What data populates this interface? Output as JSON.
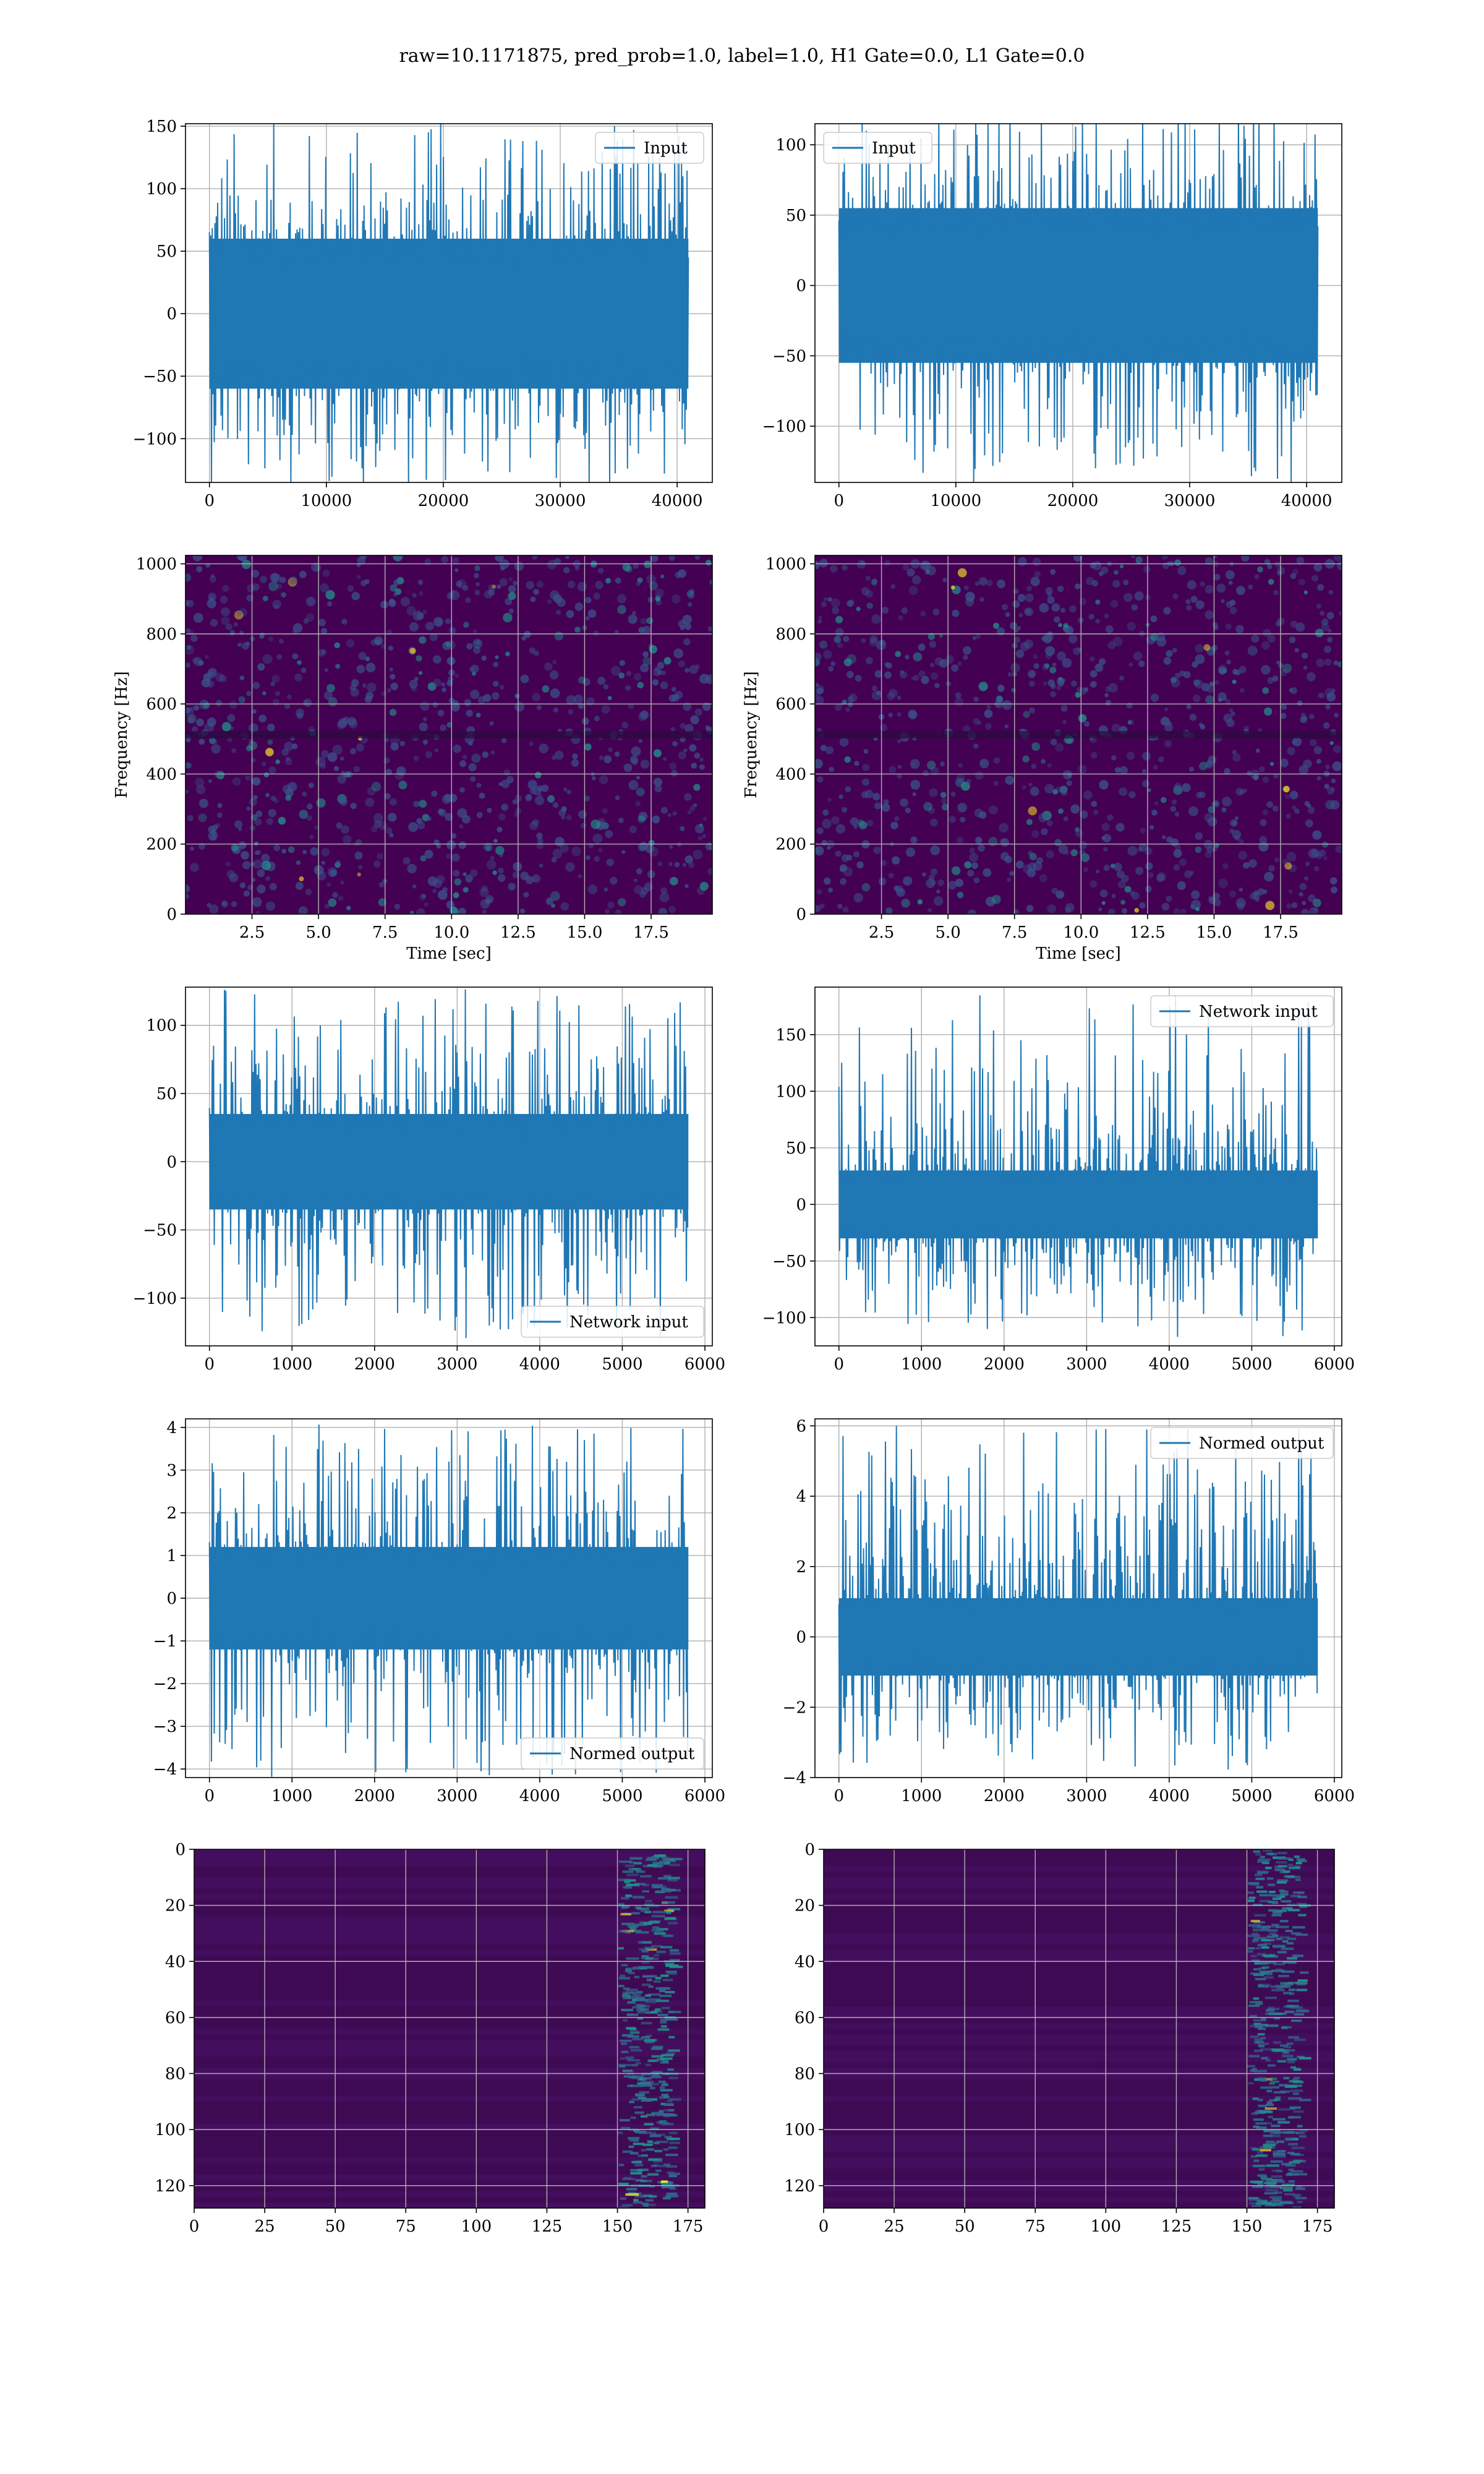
{
  "figure": {
    "suptitle": "raw=10.1171875, pred_prob=1.0, label=1.0, H1 Gate=0.0, L1 Gate=0.0"
  },
  "colors": {
    "line": "#1f77b4",
    "grid": "#b0b0b0",
    "viridis_low": "#440154",
    "viridis_mid": "#21918c",
    "viridis_high": "#fde725"
  },
  "chart_data": [
    {
      "id": "h1-input",
      "type": "line",
      "grid": true,
      "legend": "upper right",
      "series": [
        {
          "name": "Input",
          "n_points": 40960,
          "center": 0,
          "band": [
            -60,
            60
          ],
          "extremes": [
            -125,
            140
          ]
        }
      ],
      "xlim": [
        -2048,
        43008
      ],
      "ylim": [
        -135,
        152
      ],
      "xticks": [
        0,
        10000,
        20000,
        30000,
        40000
      ],
      "yticks": [
        -100,
        -50,
        0,
        50,
        100,
        150
      ],
      "xlabel": "",
      "ylabel": ""
    },
    {
      "id": "l1-input",
      "type": "line",
      "grid": true,
      "legend": "upper left",
      "series": [
        {
          "name": "Input",
          "n_points": 40960,
          "center": 0,
          "band": [
            -55,
            55
          ],
          "extremes": [
            -128,
            125
          ]
        }
      ],
      "xlim": [
        -2048,
        43008
      ],
      "ylim": [
        -140,
        115
      ],
      "xticks": [
        0,
        10000,
        20000,
        30000,
        40000
      ],
      "yticks": [
        -100,
        -50,
        0,
        50,
        100
      ],
      "xlabel": "",
      "ylabel": ""
    },
    {
      "id": "h1-spectrogram",
      "type": "heatmap",
      "grid": true,
      "xlim": [
        0,
        19.8
      ],
      "ylim": [
        0,
        1024
      ],
      "xticks": [
        2.5,
        5.0,
        7.5,
        10.0,
        12.5,
        15.0,
        17.5
      ],
      "yticks": [
        0,
        200,
        400,
        600,
        800,
        1000
      ],
      "xlabel": "Time [sec]",
      "ylabel": "Frequency [Hz]"
    },
    {
      "id": "l1-spectrogram",
      "type": "heatmap",
      "grid": true,
      "xlim": [
        0,
        19.8
      ],
      "ylim": [
        0,
        1024
      ],
      "xticks": [
        2.5,
        5.0,
        7.5,
        10.0,
        12.5,
        15.0,
        17.5
      ],
      "yticks": [
        0,
        200,
        400,
        600,
        800,
        1000
      ],
      "xlabel": "Time [sec]",
      "ylabel": "Frequency [Hz]"
    },
    {
      "id": "h1-network-input",
      "type": "line",
      "grid": true,
      "legend": "lower right",
      "series": [
        {
          "name": "Network input",
          "n_points": 5800,
          "center": 0,
          "band": [
            -35,
            35
          ],
          "extremes": [
            -125,
            118
          ]
        }
      ],
      "xlim": [
        -290,
        6090
      ],
      "ylim": [
        -135,
        128
      ],
      "xticks": [
        0,
        1000,
        2000,
        3000,
        4000,
        5000,
        6000
      ],
      "yticks": [
        -100,
        -50,
        0,
        50,
        100
      ],
      "xlabel": "",
      "ylabel": ""
    },
    {
      "id": "l1-network-input",
      "type": "line",
      "grid": true,
      "legend": "upper right",
      "series": [
        {
          "name": "Network input",
          "n_points": 5800,
          "center": 0,
          "band": [
            -30,
            30
          ],
          "extremes": [
            -112,
            180
          ]
        }
      ],
      "xlim": [
        -290,
        6090
      ],
      "ylim": [
        -125,
        192
      ],
      "xticks": [
        0,
        1000,
        2000,
        3000,
        4000,
        5000,
        6000
      ],
      "yticks": [
        -100,
        -50,
        0,
        50,
        100,
        150
      ],
      "xlabel": "",
      "ylabel": ""
    },
    {
      "id": "h1-normed-output",
      "type": "line",
      "grid": true,
      "legend": "lower right",
      "series": [
        {
          "name": "Normed output",
          "n_points": 5800,
          "center": 0,
          "band": [
            -1.2,
            1.2
          ],
          "extremes": [
            -3.9,
            3.8
          ]
        }
      ],
      "xlim": [
        -290,
        6090
      ],
      "ylim": [
        -4.2,
        4.2
      ],
      "xticks": [
        0,
        1000,
        2000,
        3000,
        4000,
        5000,
        6000
      ],
      "yticks": [
        -4,
        -3,
        -2,
        -1,
        0,
        1,
        2,
        3,
        4
      ],
      "xlabel": "",
      "ylabel": ""
    },
    {
      "id": "l1-normed-output",
      "type": "line",
      "grid": true,
      "legend": "upper right",
      "series": [
        {
          "name": "Normed output",
          "n_points": 5800,
          "center": 0,
          "band": [
            -1.1,
            1.1
          ],
          "extremes": [
            -3.5,
            5.8
          ]
        }
      ],
      "xlim": [
        -290,
        6090
      ],
      "ylim": [
        -4.0,
        6.2
      ],
      "xticks": [
        0,
        1000,
        2000,
        3000,
        4000,
        5000,
        6000
      ],
      "yticks": [
        -4,
        -2,
        0,
        2,
        4,
        6
      ],
      "xlabel": "",
      "ylabel": ""
    },
    {
      "id": "h1-qtransform",
      "type": "heatmap",
      "grid": true,
      "xlim": [
        0,
        181
      ],
      "ylim": [
        128,
        0
      ],
      "xticks": [
        0,
        25,
        50,
        75,
        100,
        125,
        150,
        175
      ],
      "yticks": [
        0,
        20,
        40,
        60,
        80,
        100,
        120
      ],
      "hot_columns": [
        150,
        175
      ],
      "xlabel": "",
      "ylabel": ""
    },
    {
      "id": "l1-qtransform",
      "type": "heatmap",
      "grid": true,
      "xlim": [
        0,
        181
      ],
      "ylim": [
        128,
        0
      ],
      "xticks": [
        0,
        25,
        50,
        75,
        100,
        125,
        150,
        175
      ],
      "yticks": [
        0,
        20,
        40,
        60,
        80,
        100,
        120
      ],
      "hot_columns": [
        150,
        175
      ],
      "xlabel": "",
      "ylabel": ""
    }
  ]
}
